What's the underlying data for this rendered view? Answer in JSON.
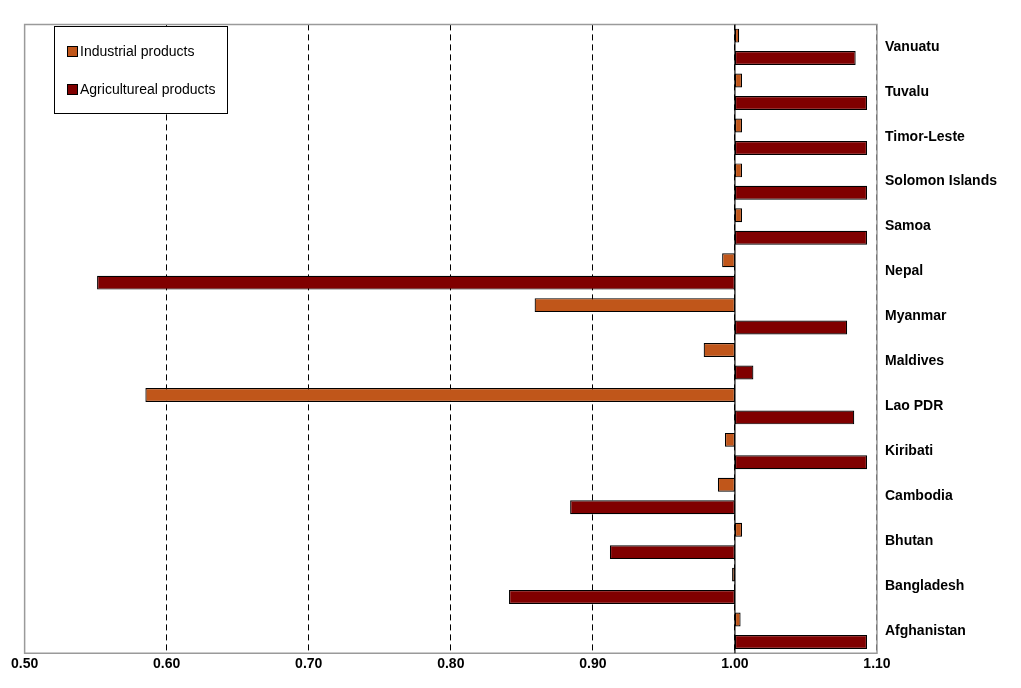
{
  "chart_data": {
    "type": "bar",
    "orientation": "horizontal",
    "categories": [
      "Vanuatu",
      "Tuvalu",
      "Timor-Leste",
      "Solomon Islands",
      "Samoa",
      "Nepal",
      "Myanmar",
      "Maldives",
      "Lao PDR",
      "Kiribati",
      "Cambodia",
      "Bhutan",
      "Bangladesh",
      "Afghanistan"
    ],
    "series": [
      {
        "name": "Industrial products",
        "color": "#c0561a",
        "base": [
          1,
          1,
          1,
          1,
          1,
          1,
          1,
          1,
          1,
          1,
          1,
          1,
          1,
          1
        ],
        "values": [
          0.003,
          0.005,
          0.005,
          0.005,
          0.005,
          -0.009,
          -0.141,
          -0.022,
          -0.415,
          -0.007,
          -0.012,
          0.005,
          -0.002,
          0.004
        ]
      },
      {
        "name": "Agricultureal products",
        "color": "#800000",
        "base": [
          1,
          1,
          1,
          1,
          1,
          1,
          1,
          1,
          1,
          1,
          1,
          1,
          1,
          1
        ],
        "values": [
          0.085,
          0.093,
          0.093,
          0.093,
          0.093,
          -0.449,
          0.079,
          0.013,
          0.084,
          0.093,
          -0.116,
          -0.088,
          -0.159,
          0.093
        ]
      }
    ],
    "xlim": [
      0.5,
      1.1
    ],
    "xticks": [
      {
        "value": 0.5,
        "label": "0.50"
      },
      {
        "value": 0.6,
        "label": "0.60"
      },
      {
        "value": 0.7,
        "label": "0.70"
      },
      {
        "value": 0.8,
        "label": "0.80"
      },
      {
        "value": 0.9,
        "label": "0.90"
      },
      {
        "value": 1.0,
        "label": "1.00"
      },
      {
        "value": 1.1,
        "label": "1.10"
      }
    ],
    "ref_lines": [
      {
        "axis": "x",
        "value": 1,
        "color": "#000000",
        "line_style": "solid"
      }
    ],
    "grid": "x",
    "legend": "top left"
  }
}
